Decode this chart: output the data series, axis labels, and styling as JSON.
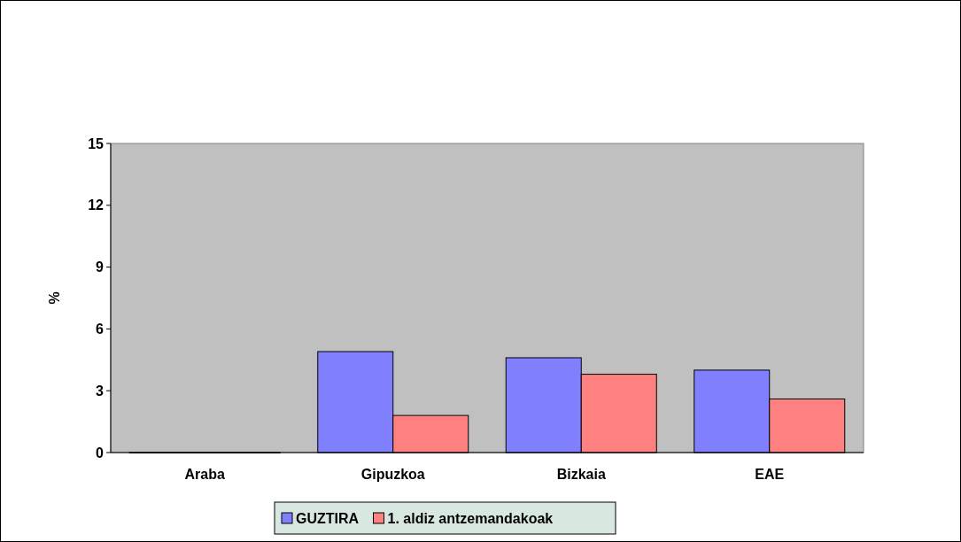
{
  "chart_data": {
    "type": "bar",
    "ylabel": "%",
    "categories": [
      "Araba",
      "Gipuzkoa",
      "Bizkaia",
      "EAE"
    ],
    "series": [
      {
        "name": "GUZTIRA",
        "color": "#8080ff",
        "values": [
          0,
          4.9,
          4.6,
          4.0
        ]
      },
      {
        "name": "1. aldiz antzemandakoak",
        "color": "#ff8080",
        "values": [
          0,
          1.8,
          3.8,
          2.6
        ]
      }
    ],
    "ylim": [
      0,
      15
    ],
    "yticks": [
      0,
      3,
      6,
      9,
      12,
      15
    ],
    "grid": false,
    "legend": "bottom"
  }
}
